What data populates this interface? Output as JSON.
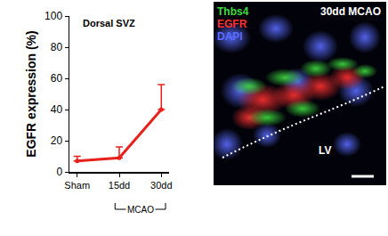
{
  "chart_data": {
    "type": "line",
    "title": "Dorsal SVZ",
    "y_label": "EGFR expression (%)",
    "categories": [
      "Sham",
      "15dd",
      "30dd"
    ],
    "values": [
      7,
      9,
      40
    ],
    "errors": [
      3,
      7,
      16
    ],
    "color": "#e8211c",
    "marker": "circle",
    "ylim": [
      0,
      100
    ],
    "yticks": [
      0,
      20,
      40,
      60,
      80,
      100
    ],
    "grid": false,
    "annotations": [
      {
        "text": "MCAO",
        "span": [
          "15dd",
          "30dd"
        ]
      }
    ]
  },
  "image_panel": {
    "title": "30dd MCAO",
    "channels": [
      {
        "name": "Thbs4",
        "color": "#3fdc3f"
      },
      {
        "name": "EGFR",
        "color": "#ff3030"
      },
      {
        "name": "DAPI",
        "color": "#5a6bff"
      }
    ],
    "region_label": "LV"
  }
}
